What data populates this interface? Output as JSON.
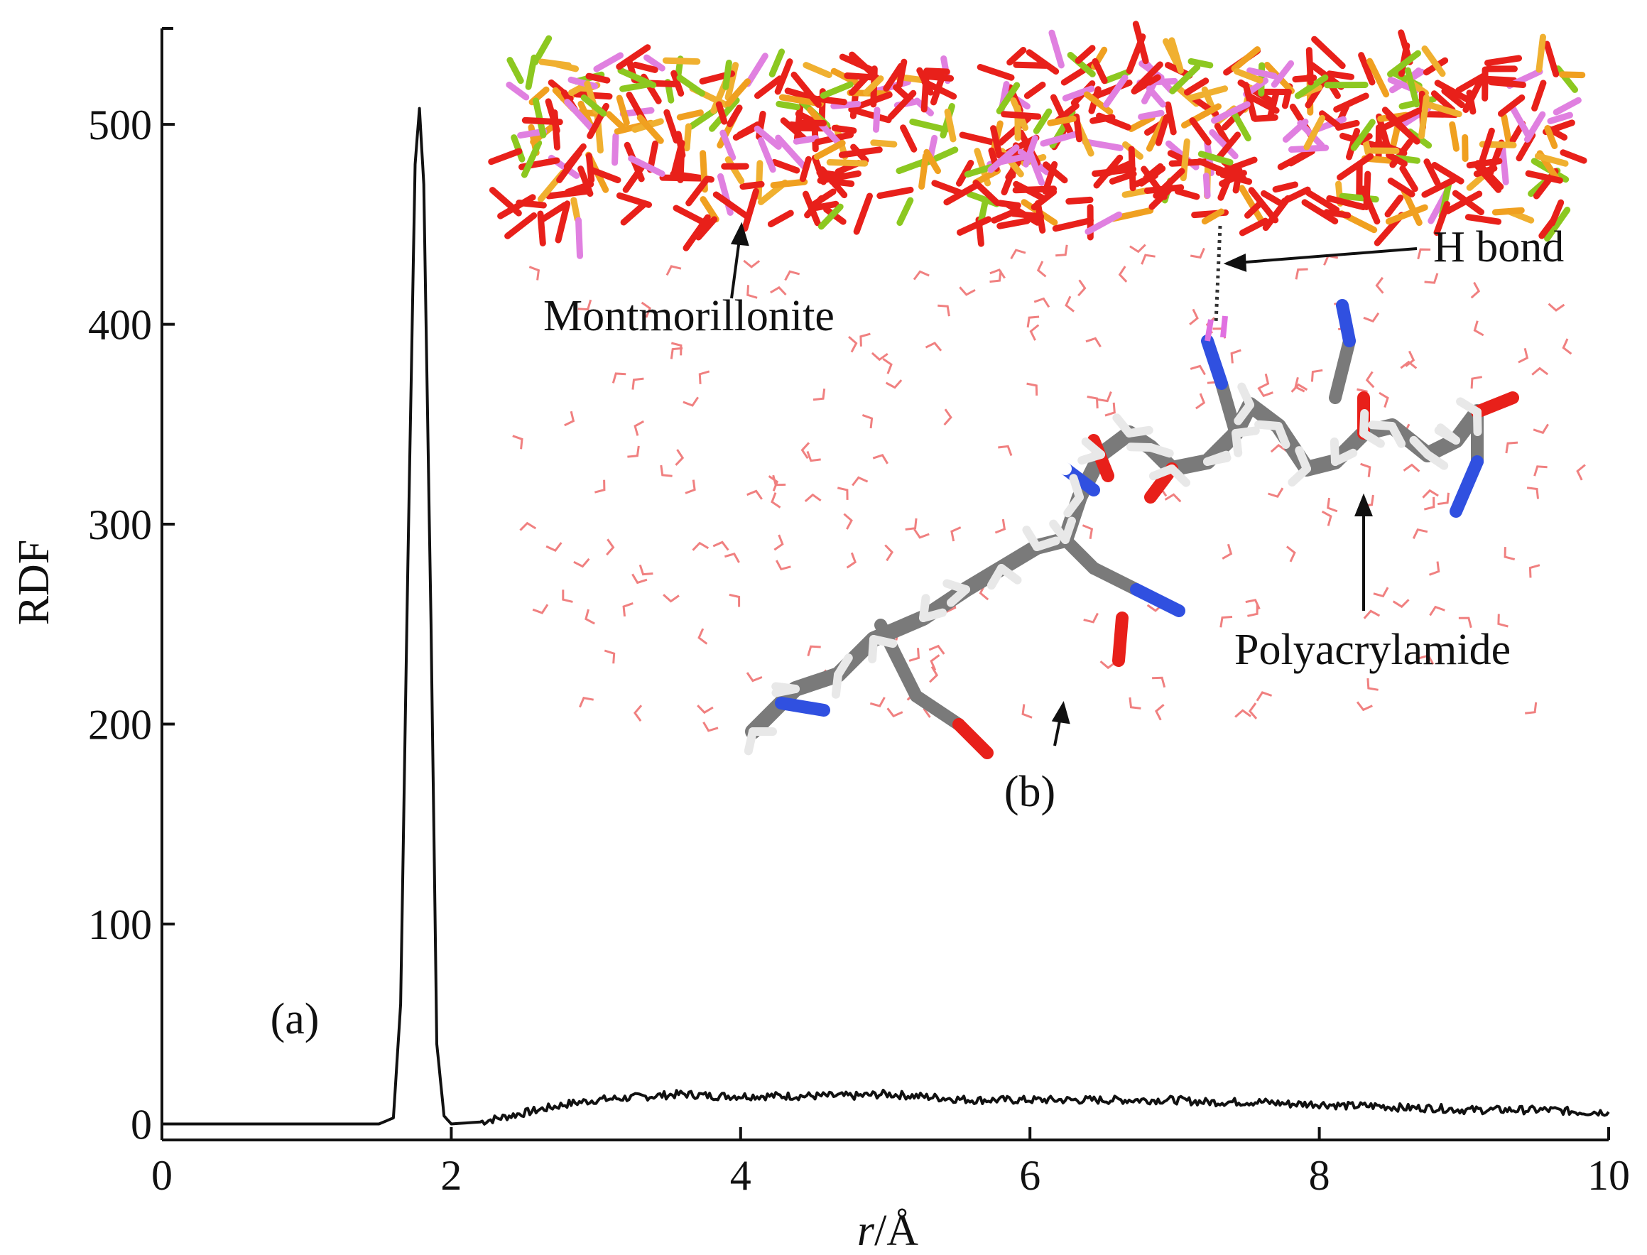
{
  "chart_data": {
    "type": "line",
    "xlabel_italic": "r",
    "xlabel_unit": "/Å",
    "ylabel": "RDF",
    "xlim": [
      0,
      10
    ],
    "ylim": [
      -8,
      548
    ],
    "xticks": [
      0,
      2,
      4,
      6,
      8,
      10
    ],
    "yticks": [
      0,
      100,
      200,
      300,
      400,
      500
    ],
    "grid": false,
    "series": [
      {
        "color": "#111111",
        "peak": {
          "x": 1.78,
          "y": 508
        },
        "x": [
          0,
          0.5,
          1.0,
          1.5,
          1.6,
          1.65,
          1.7,
          1.75,
          1.78,
          1.81,
          1.86,
          1.9,
          1.95,
          2.0,
          2.2,
          2.4,
          2.6,
          2.8,
          3.0,
          3.2,
          3.4,
          3.6,
          3.8,
          4.0,
          4.2,
          4.4,
          4.6,
          4.8,
          5.0,
          5.2,
          5.4,
          5.6,
          5.8,
          6.0,
          6.2,
          6.4,
          6.6,
          6.8,
          7.0,
          7.2,
          7.4,
          7.6,
          7.8,
          8.0,
          8.2,
          8.4,
          8.6,
          8.8,
          9.0,
          9.2,
          9.4,
          9.6,
          9.8,
          10.0
        ],
        "y": [
          0,
          0,
          0,
          0,
          3,
          60,
          280,
          480,
          508,
          470,
          250,
          40,
          4,
          0,
          1,
          4,
          7,
          10,
          12,
          13,
          14,
          15,
          14,
          14,
          14,
          14,
          14,
          14,
          15,
          14,
          13,
          12,
          12,
          12,
          12,
          12,
          12,
          12,
          12,
          11,
          11,
          11,
          10,
          10,
          9,
          9,
          8,
          8,
          7,
          7,
          7,
          7,
          6,
          6
        ]
      }
    ],
    "annotations": {
      "panel_a": "(a)",
      "panel_b": "(b)",
      "montmorillonite": "Montmorillonite",
      "h_bond": "H bond",
      "polyacrylamide": "Polyacrylamide"
    }
  }
}
